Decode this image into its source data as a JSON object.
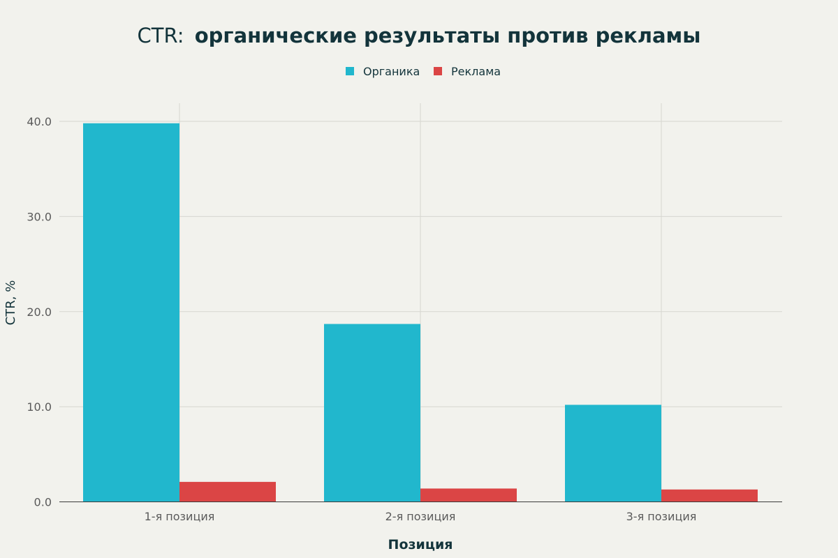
{
  "chart_data": {
    "type": "bar",
    "title_prefix": "CTR:",
    "title_main": "органические результаты против рекламы",
    "xlabel": "Позиция",
    "ylabel": "CTR, %",
    "categories": [
      "1-я позиция",
      "2-я позиция",
      "3-я позиция"
    ],
    "series": [
      {
        "name": "Органика",
        "values": [
          39.8,
          18.7,
          10.2
        ]
      },
      {
        "name": "Реклама",
        "values": [
          2.1,
          1.4,
          1.3
        ]
      }
    ],
    "ylim": [
      0,
      40
    ],
    "yticks": [
      0,
      10,
      20,
      30,
      40
    ],
    "ytick_labels": [
      "0.0",
      "10.0",
      "20.0",
      "30.0",
      "40.0"
    ],
    "grid": true,
    "legend_position": "top-center"
  },
  "colors": {
    "background": "#f2f2ed",
    "organic": "#21b7cd",
    "ads": "#db4545",
    "grid": "#d6d6d0",
    "axis": "#3a3a3a",
    "title": "#13343b",
    "tick_text": "#5a5a5a"
  }
}
